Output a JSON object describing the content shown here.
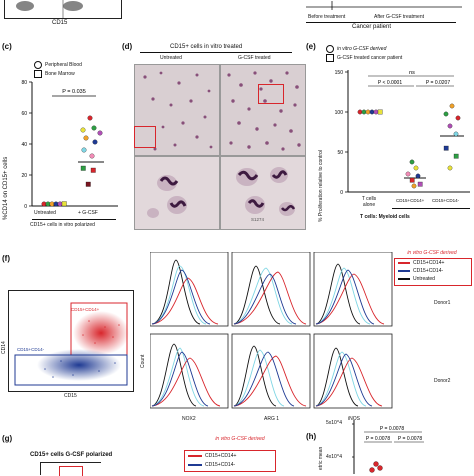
{
  "top": {
    "axis_cd15": "CD15",
    "patient_header": "Cancer patient",
    "before_label": "Before treatment",
    "after_label": "After G-CSF treatment"
  },
  "panel_c": {
    "label": "(c)",
    "legend": [
      "Peripheral Blood",
      "Bone Marrow"
    ],
    "pvalue": "P = 0.035",
    "ylabel": "%CD14 on CD15+ cells",
    "yticks": [
      "0",
      "20",
      "40",
      "60",
      "80"
    ],
    "x_untreated": "Untreated",
    "x_gcsf": "+ G-CSF",
    "caption": "CD15+ cells in vitro polarized"
  },
  "panel_d": {
    "label": "(d)",
    "header": "CD15+ cells in vitro treated",
    "untreated": "Untreated",
    "gcsf": "G-CSF treated",
    "stamp": "S1274"
  },
  "panel_e": {
    "label": "(e)",
    "legend": [
      "in vitro G-CSF derived",
      "G-CSF treated cancer patient"
    ],
    "ns": "ns",
    "p1": "P < 0.0001",
    "p2": "P = 0.0207",
    "ylabel": "% Proliferation relative to control",
    "yticks": [
      "0",
      "50",
      "100",
      "150"
    ],
    "x1": "T cells alone",
    "x2": "CD15+CD14+",
    "x3": "CD15+CD14-",
    "caption": "T cells: Myeloid cells"
  },
  "panel_f": {
    "label": "(f)",
    "ylabel": "CD14",
    "xlabel": "CD15",
    "pos_gate": "CD15+CD14+",
    "neg_gate": "CD15+CD14-",
    "legend_title": "in vitro G-CSF derived",
    "legend_items": [
      "CD15+CD14+",
      "CD15+CD14-",
      "Untreated"
    ],
    "donor1": "Donor1",
    "donor2": "Donor2",
    "count": "Count",
    "x_markers": [
      "NOX2",
      "ARG 1",
      "iNOS"
    ]
  },
  "panel_g": {
    "label": "(g)",
    "title": "CD15+ cells G-CSF polarized",
    "legend_title": "in vitro G-CSF derived",
    "legend_items": [
      "CD15+CD14+",
      "CD15+CD14-"
    ]
  },
  "panel_h": {
    "label": "(h)",
    "ytick": "5x10^4",
    "ytick2": "4x10^4",
    "ylabel": "etric mean",
    "p1": "P = 0.0078",
    "p2": "P = 0.0078",
    "p3": "P = 0.0078"
  },
  "colors": {
    "red": "#d8262c",
    "blue": "#1f3a93",
    "cyan": "#7fd6e4",
    "black": "#111111"
  }
}
